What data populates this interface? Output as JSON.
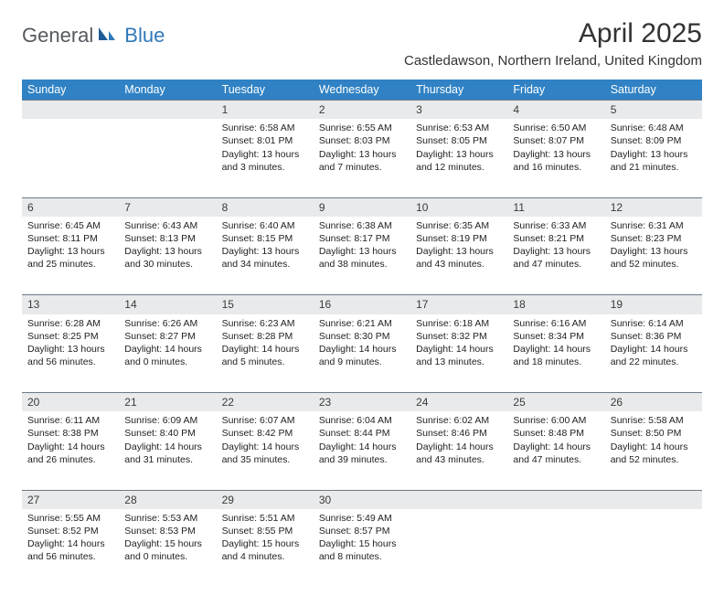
{
  "brand": {
    "name1": "General",
    "name2": "Blue"
  },
  "title": "April 2025",
  "location": "Castledawson, Northern Ireland, United Kingdom",
  "colors": {
    "header_bg": "#3082c4",
    "header_text": "#ffffff",
    "daynum_bg": "#e9eaeb",
    "row_divider": "#6b7a8a",
    "logo_gray": "#555a5f",
    "logo_blue": "#2f79b9"
  },
  "typography": {
    "title_fontsize": 30,
    "location_fontsize": 15,
    "weekday_fontsize": 12.5,
    "daynum_fontsize": 12,
    "cell_fontsize": 10.5
  },
  "weekdays": [
    "Sunday",
    "Monday",
    "Tuesday",
    "Wednesday",
    "Thursday",
    "Friday",
    "Saturday"
  ],
  "weeks": [
    [
      null,
      null,
      {
        "n": "1",
        "sunrise": "Sunrise: 6:58 AM",
        "sunset": "Sunset: 8:01 PM",
        "d1": "Daylight: 13 hours",
        "d2": "and 3 minutes."
      },
      {
        "n": "2",
        "sunrise": "Sunrise: 6:55 AM",
        "sunset": "Sunset: 8:03 PM",
        "d1": "Daylight: 13 hours",
        "d2": "and 7 minutes."
      },
      {
        "n": "3",
        "sunrise": "Sunrise: 6:53 AM",
        "sunset": "Sunset: 8:05 PM",
        "d1": "Daylight: 13 hours",
        "d2": "and 12 minutes."
      },
      {
        "n": "4",
        "sunrise": "Sunrise: 6:50 AM",
        "sunset": "Sunset: 8:07 PM",
        "d1": "Daylight: 13 hours",
        "d2": "and 16 minutes."
      },
      {
        "n": "5",
        "sunrise": "Sunrise: 6:48 AM",
        "sunset": "Sunset: 8:09 PM",
        "d1": "Daylight: 13 hours",
        "d2": "and 21 minutes."
      }
    ],
    [
      {
        "n": "6",
        "sunrise": "Sunrise: 6:45 AM",
        "sunset": "Sunset: 8:11 PM",
        "d1": "Daylight: 13 hours",
        "d2": "and 25 minutes."
      },
      {
        "n": "7",
        "sunrise": "Sunrise: 6:43 AM",
        "sunset": "Sunset: 8:13 PM",
        "d1": "Daylight: 13 hours",
        "d2": "and 30 minutes."
      },
      {
        "n": "8",
        "sunrise": "Sunrise: 6:40 AM",
        "sunset": "Sunset: 8:15 PM",
        "d1": "Daylight: 13 hours",
        "d2": "and 34 minutes."
      },
      {
        "n": "9",
        "sunrise": "Sunrise: 6:38 AM",
        "sunset": "Sunset: 8:17 PM",
        "d1": "Daylight: 13 hours",
        "d2": "and 38 minutes."
      },
      {
        "n": "10",
        "sunrise": "Sunrise: 6:35 AM",
        "sunset": "Sunset: 8:19 PM",
        "d1": "Daylight: 13 hours",
        "d2": "and 43 minutes."
      },
      {
        "n": "11",
        "sunrise": "Sunrise: 6:33 AM",
        "sunset": "Sunset: 8:21 PM",
        "d1": "Daylight: 13 hours",
        "d2": "and 47 minutes."
      },
      {
        "n": "12",
        "sunrise": "Sunrise: 6:31 AM",
        "sunset": "Sunset: 8:23 PM",
        "d1": "Daylight: 13 hours",
        "d2": "and 52 minutes."
      }
    ],
    [
      {
        "n": "13",
        "sunrise": "Sunrise: 6:28 AM",
        "sunset": "Sunset: 8:25 PM",
        "d1": "Daylight: 13 hours",
        "d2": "and 56 minutes."
      },
      {
        "n": "14",
        "sunrise": "Sunrise: 6:26 AM",
        "sunset": "Sunset: 8:27 PM",
        "d1": "Daylight: 14 hours",
        "d2": "and 0 minutes."
      },
      {
        "n": "15",
        "sunrise": "Sunrise: 6:23 AM",
        "sunset": "Sunset: 8:28 PM",
        "d1": "Daylight: 14 hours",
        "d2": "and 5 minutes."
      },
      {
        "n": "16",
        "sunrise": "Sunrise: 6:21 AM",
        "sunset": "Sunset: 8:30 PM",
        "d1": "Daylight: 14 hours",
        "d2": "and 9 minutes."
      },
      {
        "n": "17",
        "sunrise": "Sunrise: 6:18 AM",
        "sunset": "Sunset: 8:32 PM",
        "d1": "Daylight: 14 hours",
        "d2": "and 13 minutes."
      },
      {
        "n": "18",
        "sunrise": "Sunrise: 6:16 AM",
        "sunset": "Sunset: 8:34 PM",
        "d1": "Daylight: 14 hours",
        "d2": "and 18 minutes."
      },
      {
        "n": "19",
        "sunrise": "Sunrise: 6:14 AM",
        "sunset": "Sunset: 8:36 PM",
        "d1": "Daylight: 14 hours",
        "d2": "and 22 minutes."
      }
    ],
    [
      {
        "n": "20",
        "sunrise": "Sunrise: 6:11 AM",
        "sunset": "Sunset: 8:38 PM",
        "d1": "Daylight: 14 hours",
        "d2": "and 26 minutes."
      },
      {
        "n": "21",
        "sunrise": "Sunrise: 6:09 AM",
        "sunset": "Sunset: 8:40 PM",
        "d1": "Daylight: 14 hours",
        "d2": "and 31 minutes."
      },
      {
        "n": "22",
        "sunrise": "Sunrise: 6:07 AM",
        "sunset": "Sunset: 8:42 PM",
        "d1": "Daylight: 14 hours",
        "d2": "and 35 minutes."
      },
      {
        "n": "23",
        "sunrise": "Sunrise: 6:04 AM",
        "sunset": "Sunset: 8:44 PM",
        "d1": "Daylight: 14 hours",
        "d2": "and 39 minutes."
      },
      {
        "n": "24",
        "sunrise": "Sunrise: 6:02 AM",
        "sunset": "Sunset: 8:46 PM",
        "d1": "Daylight: 14 hours",
        "d2": "and 43 minutes."
      },
      {
        "n": "25",
        "sunrise": "Sunrise: 6:00 AM",
        "sunset": "Sunset: 8:48 PM",
        "d1": "Daylight: 14 hours",
        "d2": "and 47 minutes."
      },
      {
        "n": "26",
        "sunrise": "Sunrise: 5:58 AM",
        "sunset": "Sunset: 8:50 PM",
        "d1": "Daylight: 14 hours",
        "d2": "and 52 minutes."
      }
    ],
    [
      {
        "n": "27",
        "sunrise": "Sunrise: 5:55 AM",
        "sunset": "Sunset: 8:52 PM",
        "d1": "Daylight: 14 hours",
        "d2": "and 56 minutes."
      },
      {
        "n": "28",
        "sunrise": "Sunrise: 5:53 AM",
        "sunset": "Sunset: 8:53 PM",
        "d1": "Daylight: 15 hours",
        "d2": "and 0 minutes."
      },
      {
        "n": "29",
        "sunrise": "Sunrise: 5:51 AM",
        "sunset": "Sunset: 8:55 PM",
        "d1": "Daylight: 15 hours",
        "d2": "and 4 minutes."
      },
      {
        "n": "30",
        "sunrise": "Sunrise: 5:49 AM",
        "sunset": "Sunset: 8:57 PM",
        "d1": "Daylight: 15 hours",
        "d2": "and 8 minutes."
      },
      null,
      null,
      null
    ]
  ]
}
